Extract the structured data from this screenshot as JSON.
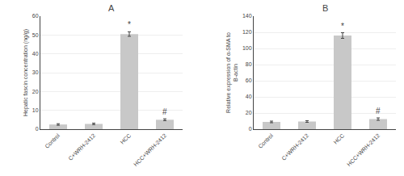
{
  "chart_data": [
    {
      "type": "bar",
      "title": "A",
      "categories": [
        "Control",
        "C+WRH-2412",
        "HCC",
        "HCC+WRH-2412"
      ],
      "values": [
        2.5,
        2.8,
        50.5,
        5.0
      ],
      "errors": [
        0.4,
        0.4,
        1.2,
        0.5
      ],
      "ylabel": "Hepatic fascin concentration (ng/g)",
      "ylim": [
        0,
        60
      ],
      "yticks": [
        0,
        10,
        20,
        30,
        40,
        50,
        60
      ],
      "color": "#c8c8c8",
      "grid": true,
      "annotations": [
        {
          "text": "*",
          "category": "HCC"
        },
        {
          "text": "#",
          "category": "HCC+WRH-2412"
        }
      ]
    },
    {
      "type": "bar",
      "title": "B",
      "categories": [
        "Control",
        "C+WRH-2412",
        "HCC",
        "HCC+WRH-2412"
      ],
      "values": [
        9.0,
        9.5,
        116.0,
        12.5
      ],
      "errors": [
        1.0,
        1.0,
        3.5,
        1.5
      ],
      "ylabel": "Relative expression of α-SMA to\nB-actin",
      "ylim": [
        0,
        140
      ],
      "yticks": [
        0,
        20,
        40,
        60,
        80,
        100,
        120,
        140
      ],
      "color": "#c8c8c8",
      "grid": true,
      "annotations": [
        {
          "text": "*",
          "category": "HCC"
        },
        {
          "text": "#",
          "category": "HCC+WRH-2412"
        }
      ]
    }
  ]
}
